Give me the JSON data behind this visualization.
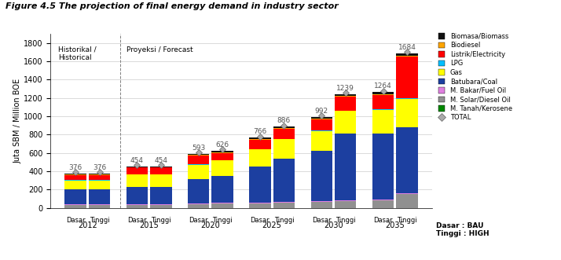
{
  "title": "Figure 4.5 The projection of final energy demand in industry sector",
  "ylabel": "Juta SBM / Million BOE",
  "ylim": [
    0,
    1900
  ],
  "yticks": [
    0,
    200,
    400,
    600,
    800,
    1000,
    1200,
    1400,
    1600,
    1800
  ],
  "years": [
    "2012",
    "2015",
    "2020",
    "2025",
    "2030",
    "2035"
  ],
  "totals": {
    "Dasar": [
      376,
      454,
      593,
      766,
      992,
      1264
    ],
    "Tinggi": [
      376,
      454,
      626,
      886,
      1239,
      1684
    ]
  },
  "segments": {
    "M. Solar/Diesel Oil": {
      "color": "#909090",
      "Dasar": [
        30,
        35,
        42,
        52,
        68,
        85
      ],
      "Tinggi": [
        30,
        35,
        47,
        58,
        78,
        155
      ]
    },
    "M. Bakar/Fuel Oil": {
      "color": "#e080e0",
      "Dasar": [
        8,
        8,
        8,
        8,
        8,
        8
      ],
      "Tinggi": [
        8,
        8,
        8,
        8,
        8,
        8
      ]
    },
    "Batubara/Coal": {
      "color": "#1c3fa0",
      "Dasar": [
        162,
        190,
        263,
        392,
        548,
        722
      ],
      "Tinggi": [
        162,
        190,
        293,
        472,
        722,
        722
      ]
    },
    "Gas": {
      "color": "#ffff00",
      "Dasar": [
        100,
        130,
        160,
        188,
        218,
        255
      ],
      "Tinggi": [
        100,
        130,
        172,
        212,
        252,
        308
      ]
    },
    "LPG": {
      "color": "#00bfff",
      "Dasar": [
        4,
        4,
        4,
        4,
        4,
        4
      ],
      "Tinggi": [
        4,
        4,
        4,
        4,
        4,
        4
      ]
    },
    "Listrik/Electricity": {
      "color": "#ff0000",
      "Dasar": [
        58,
        73,
        98,
        103,
        122,
        158
      ],
      "Tinggi": [
        58,
        73,
        78,
        113,
        152,
        453
      ]
    },
    "Biodiesel": {
      "color": "#ffa500",
      "Dasar": [
        4,
        4,
        5,
        6,
        8,
        10
      ],
      "Tinggi": [
        4,
        4,
        5,
        6,
        8,
        10
      ]
    },
    "Biomasa/Biomass": {
      "color": "#111111",
      "Dasar": [
        10,
        10,
        13,
        13,
        16,
        22
      ],
      "Tinggi": [
        10,
        10,
        19,
        13,
        15,
        24
      ]
    },
    "M. Tanah/Kerosene": {
      "color": "#008800",
      "Dasar": [
        0,
        0,
        0,
        0,
        0,
        0
      ],
      "Tinggi": [
        0,
        0,
        0,
        0,
        0,
        0
      ]
    }
  },
  "segment_order": [
    "M. Solar/Diesel Oil",
    "M. Bakar/Fuel Oil",
    "Batubara/Coal",
    "Gas",
    "LPG",
    "Listrik/Electricity",
    "Biodiesel",
    "Biomasa/Biomass",
    "M. Tanah/Kerosene"
  ],
  "legend_order": [
    "Biomasa/Biomass",
    "Biodiesel",
    "Listrik/Electricity",
    "LPG",
    "Gas",
    "Batubara/Coal",
    "M. Bakar/Fuel Oil",
    "M. Solar/Diesel Oil",
    "M. Tanah/Kerosene"
  ],
  "background_color": "#ffffff",
  "grid_color": "#cccccc",
  "annotation_color": "#555555",
  "bar_width": 0.35,
  "historik_label": "Historikal /\nHistorical",
  "proyeksi_label": "Proyeksi / Forecast",
  "dasar_bau": "Dasar : BAU",
  "tinggi_high": "Tinggi : HIGH"
}
